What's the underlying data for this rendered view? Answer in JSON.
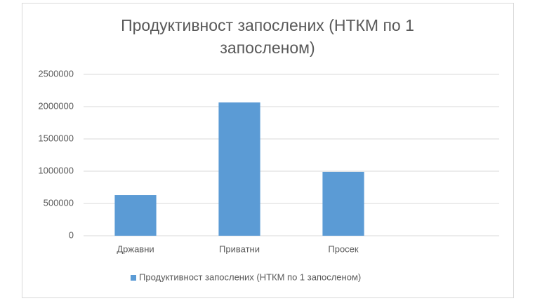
{
  "chart_data": {
    "type": "bar",
    "title": "Продуктивност запослених (НТКМ по 1 запосленом)",
    "categories": [
      "Државни",
      "Приватни",
      "Просек",
      null
    ],
    "series": [
      {
        "name": "Продуктивност запослених (НТКМ по 1 запосленом)",
        "color": "#5b9bd5",
        "values": [
          630000,
          2065000,
          990000,
          null
        ]
      }
    ],
    "ylim": [
      0,
      2500000
    ],
    "yticks": [
      0,
      500000,
      1000000,
      1500000,
      2000000,
      2500000
    ],
    "grid": true,
    "legend": "bottom"
  }
}
